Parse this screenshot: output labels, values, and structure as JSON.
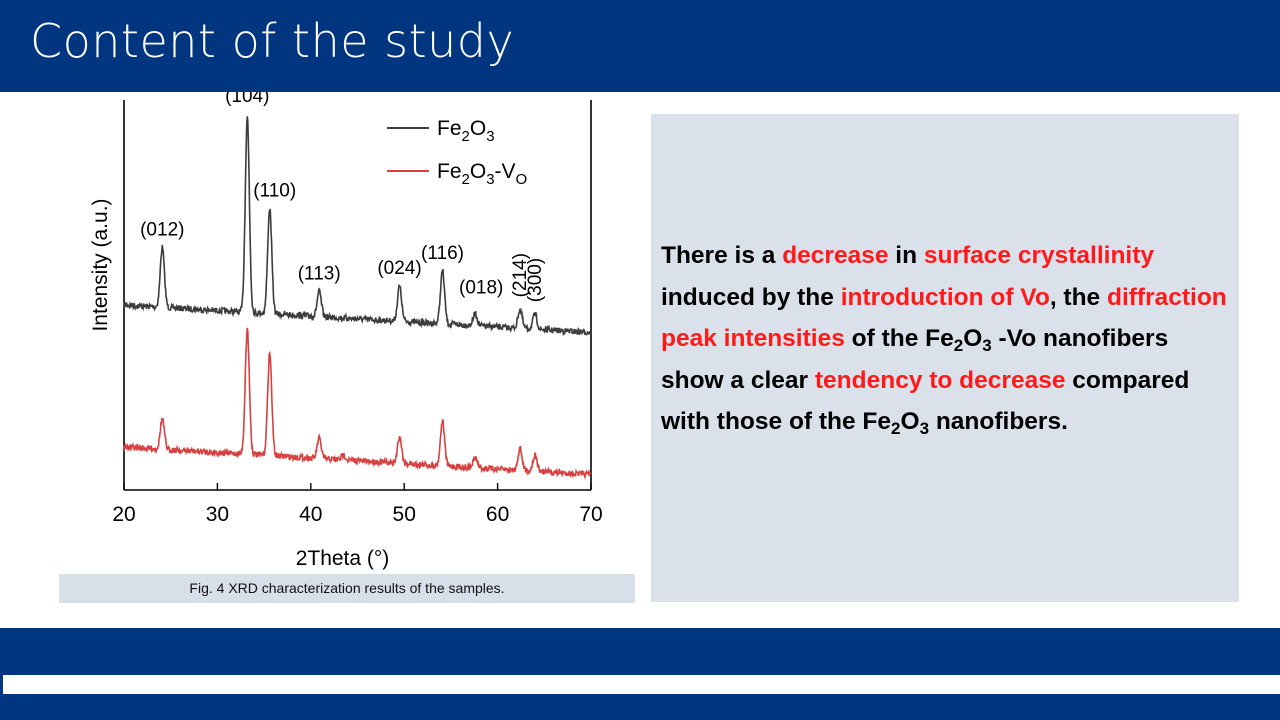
{
  "header": {
    "title": "Content of the study"
  },
  "figure": {
    "caption": "Fig. 4 XRD characterization results of the samples."
  },
  "chart_data": {
    "type": "line",
    "xlabel": "2Theta (°)",
    "ylabel": "Intensity (a.u.)",
    "xlim": [
      20,
      70
    ],
    "xticks": [
      20,
      30,
      40,
      50,
      60,
      70
    ],
    "yticks_shown": false,
    "legend_position": "top-right",
    "series": [
      {
        "name": "Fe2O3",
        "color": "#3c3c3c",
        "baseline": 0.62,
        "peaks": [
          [
            24.1,
            0.6
          ],
          [
            33.2,
            1.95
          ],
          [
            35.6,
            1.05
          ],
          [
            40.9,
            0.25
          ],
          [
            49.5,
            0.35
          ],
          [
            54.1,
            0.53
          ],
          [
            57.6,
            0.12
          ],
          [
            62.4,
            0.19
          ],
          [
            64.0,
            0.15
          ]
        ]
      },
      {
        "name": "Fe2O3-VO",
        "color": "#d94040",
        "baseline": 0.0,
        "peaks": [
          [
            24.1,
            0.3
          ],
          [
            33.2,
            1.25
          ],
          [
            35.6,
            1.02
          ],
          [
            40.9,
            0.2
          ],
          [
            43.5,
            0.05
          ],
          [
            49.5,
            0.27
          ],
          [
            54.1,
            0.45
          ],
          [
            57.6,
            0.1
          ],
          [
            62.4,
            0.22
          ],
          [
            64.0,
            0.16
          ]
        ]
      }
    ],
    "legend": [
      {
        "base": "Fe",
        "sub1": "2",
        "mid": "O",
        "sub2": "3",
        "tail": "",
        "sub3": ""
      },
      {
        "base": "Fe",
        "sub1": "2",
        "mid": "O",
        "sub2": "3",
        "tail": "-V",
        "sub3": "O"
      }
    ],
    "peak_labels": [
      {
        "text": "(104)",
        "x": 33.2
      },
      {
        "text": "(012)",
        "x": 24.1
      },
      {
        "text": "(110)",
        "x": 35.6
      },
      {
        "text": "(113)",
        "x": 40.9
      },
      {
        "text": "(024)",
        "x": 49.5
      },
      {
        "text": "(116)",
        "x": 54.1
      },
      {
        "text": "(018)",
        "x": 57.6
      },
      {
        "text": "(214)",
        "x": 62.4
      },
      {
        "text": "(300)",
        "x": 64.0
      }
    ]
  },
  "description": {
    "segments": [
      {
        "text": "There is a ",
        "red": false
      },
      {
        "text": "decrease",
        "red": true
      },
      {
        "text": " in ",
        "red": false
      },
      {
        "text": "surface crystallinity",
        "red": true
      },
      {
        "text": " induced by the ",
        "red": false
      },
      {
        "text": "introduction of Vo",
        "red": true
      },
      {
        "text": ", the ",
        "red": false
      },
      {
        "text": "diffraction peak intensities",
        "red": true
      },
      {
        "text": " of the Fe",
        "red": false
      },
      {
        "text": "2",
        "red": false,
        "sub": true
      },
      {
        "text": "O",
        "red": false
      },
      {
        "text": "3",
        "red": false,
        "sub": true
      },
      {
        "text": " -Vo nanofibers show a clear ",
        "red": false
      },
      {
        "text": "tendency to decrease",
        "red": true
      },
      {
        "text": " compared with those of the Fe",
        "red": false
      },
      {
        "text": "2",
        "red": false,
        "sub": true
      },
      {
        "text": "O",
        "red": false
      },
      {
        "text": "3",
        "red": false,
        "sub": true
      },
      {
        "text": " nanofibers.",
        "red": false
      }
    ]
  },
  "colors": {
    "brand": "#003580",
    "panel": "#dae1ea",
    "caption_bg": "#d7dfe9",
    "highlight": "#ff1a1a"
  }
}
